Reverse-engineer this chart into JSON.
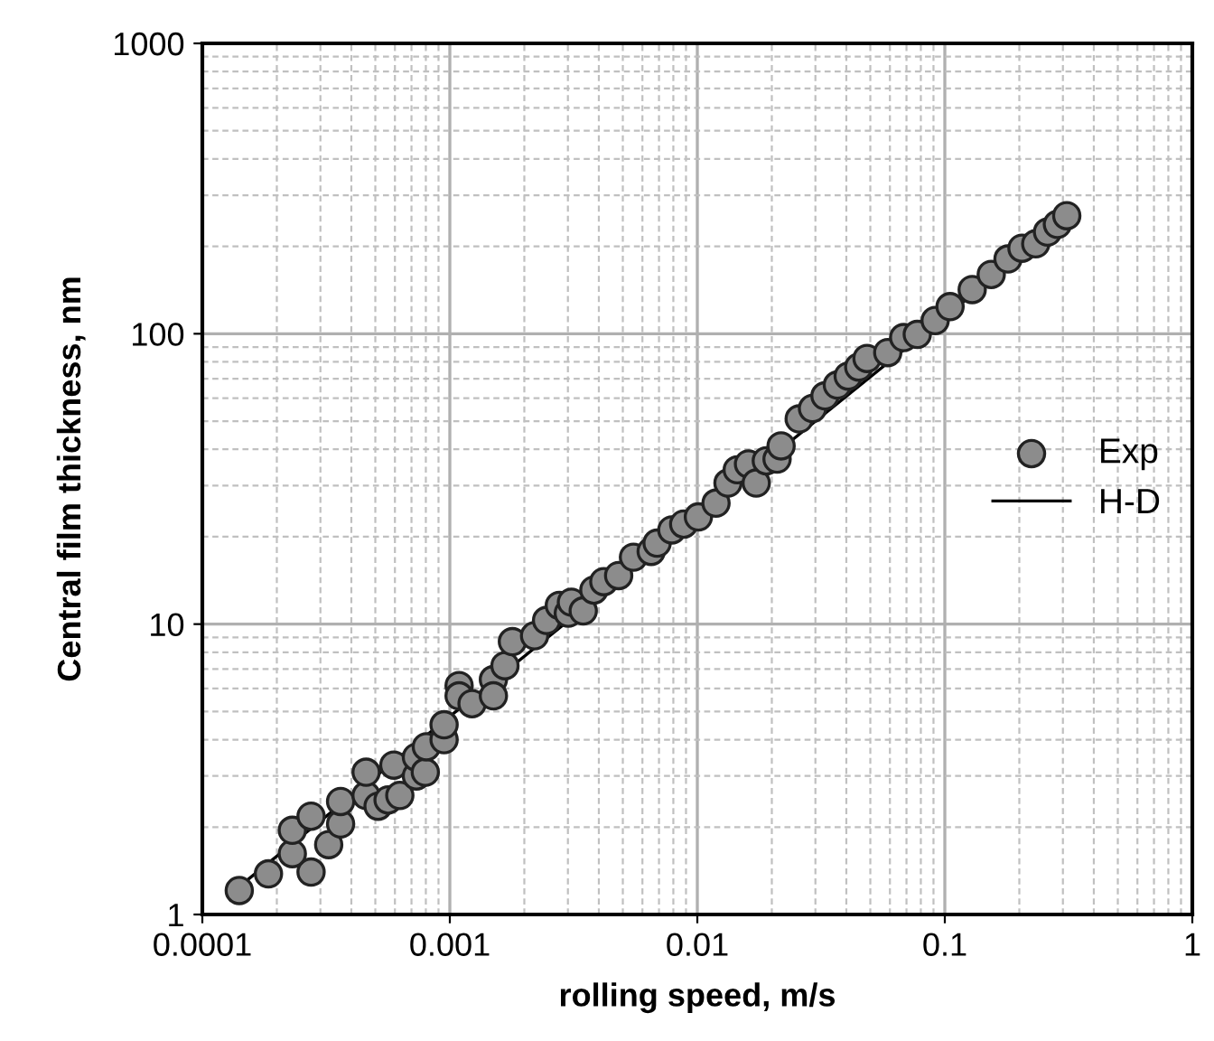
{
  "chart_data": {
    "type": "scatter",
    "xlabel": "rolling speed, m/s",
    "ylabel": "Central film thickness, nm",
    "log": "xy",
    "grid": true,
    "legend": "right",
    "xlim": [
      0.0001,
      1
    ],
    "ylim": [
      1,
      1000
    ],
    "xticks": [
      {
        "value": 0.0001,
        "label": "0.0001"
      },
      {
        "value": 0.001,
        "label": "0.001"
      },
      {
        "value": 0.01,
        "label": "0.01"
      },
      {
        "value": 0.1,
        "label": "0.1"
      },
      {
        "value": 1,
        "label": "1"
      }
    ],
    "yticks": [
      1,
      10,
      100,
      1000
    ],
    "series": [
      {
        "name": "Exp",
        "marker": "circle",
        "color": "#8c8c8c",
        "x": [
          0.000141,
          0.000185,
          0.000275,
          0.000231,
          0.000324,
          0.000231,
          0.000275,
          0.000362,
          0.000362,
          0.000459,
          0.000459,
          0.000513,
          0.000563,
          0.000628,
          0.000594,
          0.000733,
          0.000733,
          0.000796,
          0.000804,
          0.000948,
          0.000948,
          0.00109,
          0.00109,
          0.00123,
          0.0015,
          0.0015,
          0.00167,
          0.00179,
          0.0022,
          0.00246,
          0.00277,
          0.00301,
          0.0031,
          0.00346,
          0.00382,
          0.00419,
          0.00481,
          0.00552,
          0.00651,
          0.00688,
          0.00789,
          0.00881,
          0.0101,
          0.0119,
          0.0133,
          0.0145,
          0.0161,
          0.0173,
          0.019,
          0.021,
          0.0218,
          0.0258,
          0.0292,
          0.0328,
          0.0368,
          0.0407,
          0.0449,
          0.0485,
          0.0588,
          0.0682,
          0.0774,
          0.0914,
          0.105,
          0.129,
          0.154,
          0.18,
          0.205,
          0.233,
          0.26,
          0.285,
          0.311
        ],
        "values": [
          1.21,
          1.38,
          1.4,
          1.62,
          1.74,
          1.95,
          2.18,
          2.05,
          2.45,
          2.57,
          3.09,
          2.36,
          2.48,
          2.57,
          3.27,
          3.0,
          3.48,
          3.09,
          3.78,
          4.0,
          4.5,
          6.14,
          5.66,
          5.32,
          6.44,
          5.66,
          7.19,
          8.7,
          9.12,
          10.3,
          11.6,
          10.9,
          11.9,
          11.1,
          13.1,
          14.0,
          14.7,
          17.0,
          17.8,
          19.0,
          21.1,
          22.1,
          23.4,
          26.1,
          30.6,
          34.0,
          35.6,
          30.6,
          36.5,
          37.0,
          41.1,
          50.9,
          55.3,
          61.1,
          66.6,
          71.5,
          76.8,
          82.2,
          86.1,
          97.0,
          99.5,
          111,
          124,
          142,
          160,
          181,
          197,
          204,
          224,
          238,
          255
        ]
      },
      {
        "name": "H-D",
        "type": "line",
        "marker": "none",
        "line_style": "solid",
        "color": "#000000",
        "x": [
          0.00013,
          0.32
        ],
        "values": [
          1.18,
          255
        ]
      }
    ]
  }
}
